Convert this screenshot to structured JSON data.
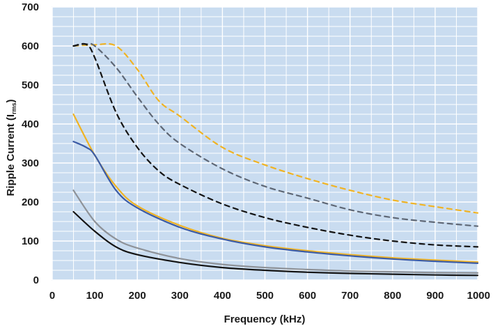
{
  "chart_data": {
    "type": "line",
    "title": "",
    "xlabel": "Frequency (kHz)",
    "ylabel_main": "Ripple Current (I",
    "ylabel_sub": "rms",
    "ylabel_close": ")",
    "xlim": [
      0,
      1000
    ],
    "ylim": [
      0,
      700
    ],
    "x_ticks": [
      "0",
      "100",
      "200",
      "300",
      "400",
      "500",
      "600",
      "700",
      "800",
      "900",
      "1000"
    ],
    "y_ticks": [
      "0",
      "100",
      "200",
      "300",
      "400",
      "500",
      "600",
      "700"
    ],
    "grid": true,
    "legend": "none",
    "colors": {
      "plot_bg": "#c9dcf0",
      "grid": "#ffffff",
      "orange": "#f0b323",
      "blue": "#3b5ba5",
      "gray": "#8e9298",
      "black": "#141414",
      "slate": "#5e6775"
    },
    "series": [
      {
        "color": "#f0b323",
        "style": "dashed",
        "x": [
          50,
          100,
          150,
          200,
          250,
          300,
          400,
          500,
          600,
          700,
          800,
          900,
          1000
        ],
        "y": [
          600,
          603,
          600,
          540,
          460,
          420,
          340,
          295,
          260,
          230,
          205,
          188,
          172
        ]
      },
      {
        "color": "#5e6775",
        "style": "dashed",
        "x": [
          50,
          80,
          100,
          150,
          200,
          250,
          300,
          400,
          500,
          600,
          700,
          800,
          900,
          1000
        ],
        "y": [
          600,
          605,
          600,
          545,
          470,
          400,
          350,
          285,
          240,
          210,
          180,
          160,
          148,
          138
        ]
      },
      {
        "color": "#141414",
        "style": "dashed",
        "x": [
          50,
          80,
          100,
          150,
          200,
          250,
          300,
          400,
          500,
          600,
          700,
          800,
          900,
          1000
        ],
        "y": [
          600,
          604,
          570,
          430,
          340,
          280,
          245,
          195,
          160,
          135,
          115,
          100,
          90,
          85
        ]
      },
      {
        "color": "#f0b323",
        "style": "solid",
        "x": [
          50,
          100,
          150,
          200,
          300,
          400,
          500,
          600,
          700,
          800,
          900,
          1000
        ],
        "y": [
          425,
          320,
          240,
          190,
          140,
          107,
          88,
          75,
          65,
          57,
          51,
          46
        ]
      },
      {
        "color": "#3b5ba5",
        "style": "solid",
        "x": [
          50,
          80,
          100,
          150,
          200,
          300,
          400,
          500,
          600,
          700,
          800,
          900,
          1000
        ],
        "y": [
          355,
          340,
          320,
          230,
          185,
          135,
          105,
          85,
          72,
          62,
          54,
          48,
          43
        ]
      },
      {
        "color": "#8e9298",
        "style": "solid",
        "x": [
          50,
          100,
          150,
          200,
          300,
          400,
          500,
          600,
          700,
          800,
          900,
          1000
        ],
        "y": [
          230,
          150,
          105,
          82,
          55,
          40,
          32,
          27,
          23,
          21,
          19,
          18
        ]
      },
      {
        "color": "#141414",
        "style": "solid",
        "x": [
          50,
          100,
          150,
          200,
          300,
          400,
          500,
          600,
          700,
          800,
          900,
          1000
        ],
        "y": [
          175,
          125,
          85,
          65,
          45,
          32,
          25,
          20,
          17,
          15,
          13,
          12
        ]
      }
    ]
  }
}
